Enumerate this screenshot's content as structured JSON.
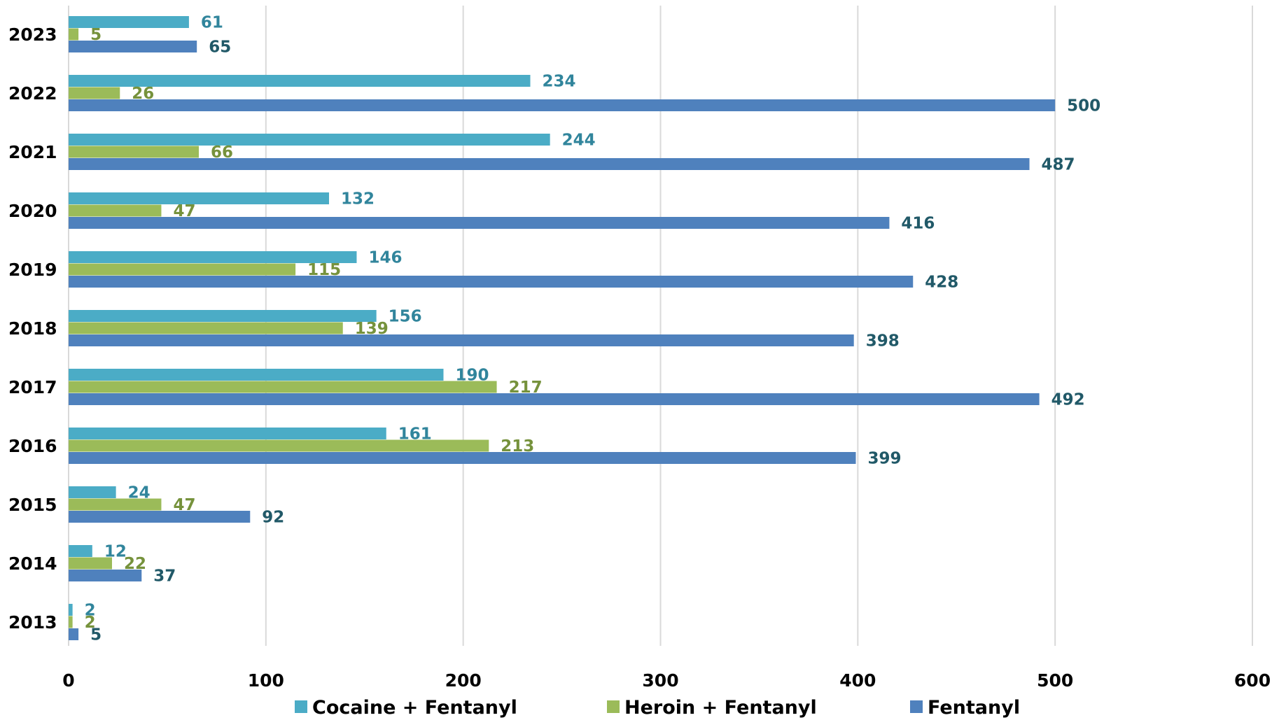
{
  "chart_data": {
    "type": "bar",
    "orientation": "horizontal",
    "title": "",
    "xlabel": "",
    "ylabel": "",
    "xlim": [
      0,
      600
    ],
    "x_ticks": [
      0,
      100,
      200,
      300,
      400,
      500,
      600
    ],
    "grid": "vertical",
    "legend_position": "bottom",
    "categories": [
      "2023",
      "2022",
      "2021",
      "2020",
      "2019",
      "2018",
      "2017",
      "2016",
      "2015",
      "2014",
      "2013"
    ],
    "series": [
      {
        "name": "Cocaine + Fentanyl",
        "color": "#4bacc6",
        "label_color": "#31859c",
        "values": [
          61,
          234,
          244,
          132,
          146,
          156,
          190,
          161,
          24,
          12,
          2
        ]
      },
      {
        "name": "Heroin + Fentanyl",
        "color": "#9bbb59",
        "label_color": "#76923c",
        "values": [
          5,
          26,
          66,
          47,
          115,
          139,
          217,
          213,
          47,
          22,
          2
        ]
      },
      {
        "name": "Fentanyl",
        "color": "#4f81bd",
        "label_color": "#215968",
        "values": [
          65,
          500,
          487,
          416,
          428,
          398,
          492,
          399,
          92,
          37,
          5
        ]
      }
    ]
  }
}
